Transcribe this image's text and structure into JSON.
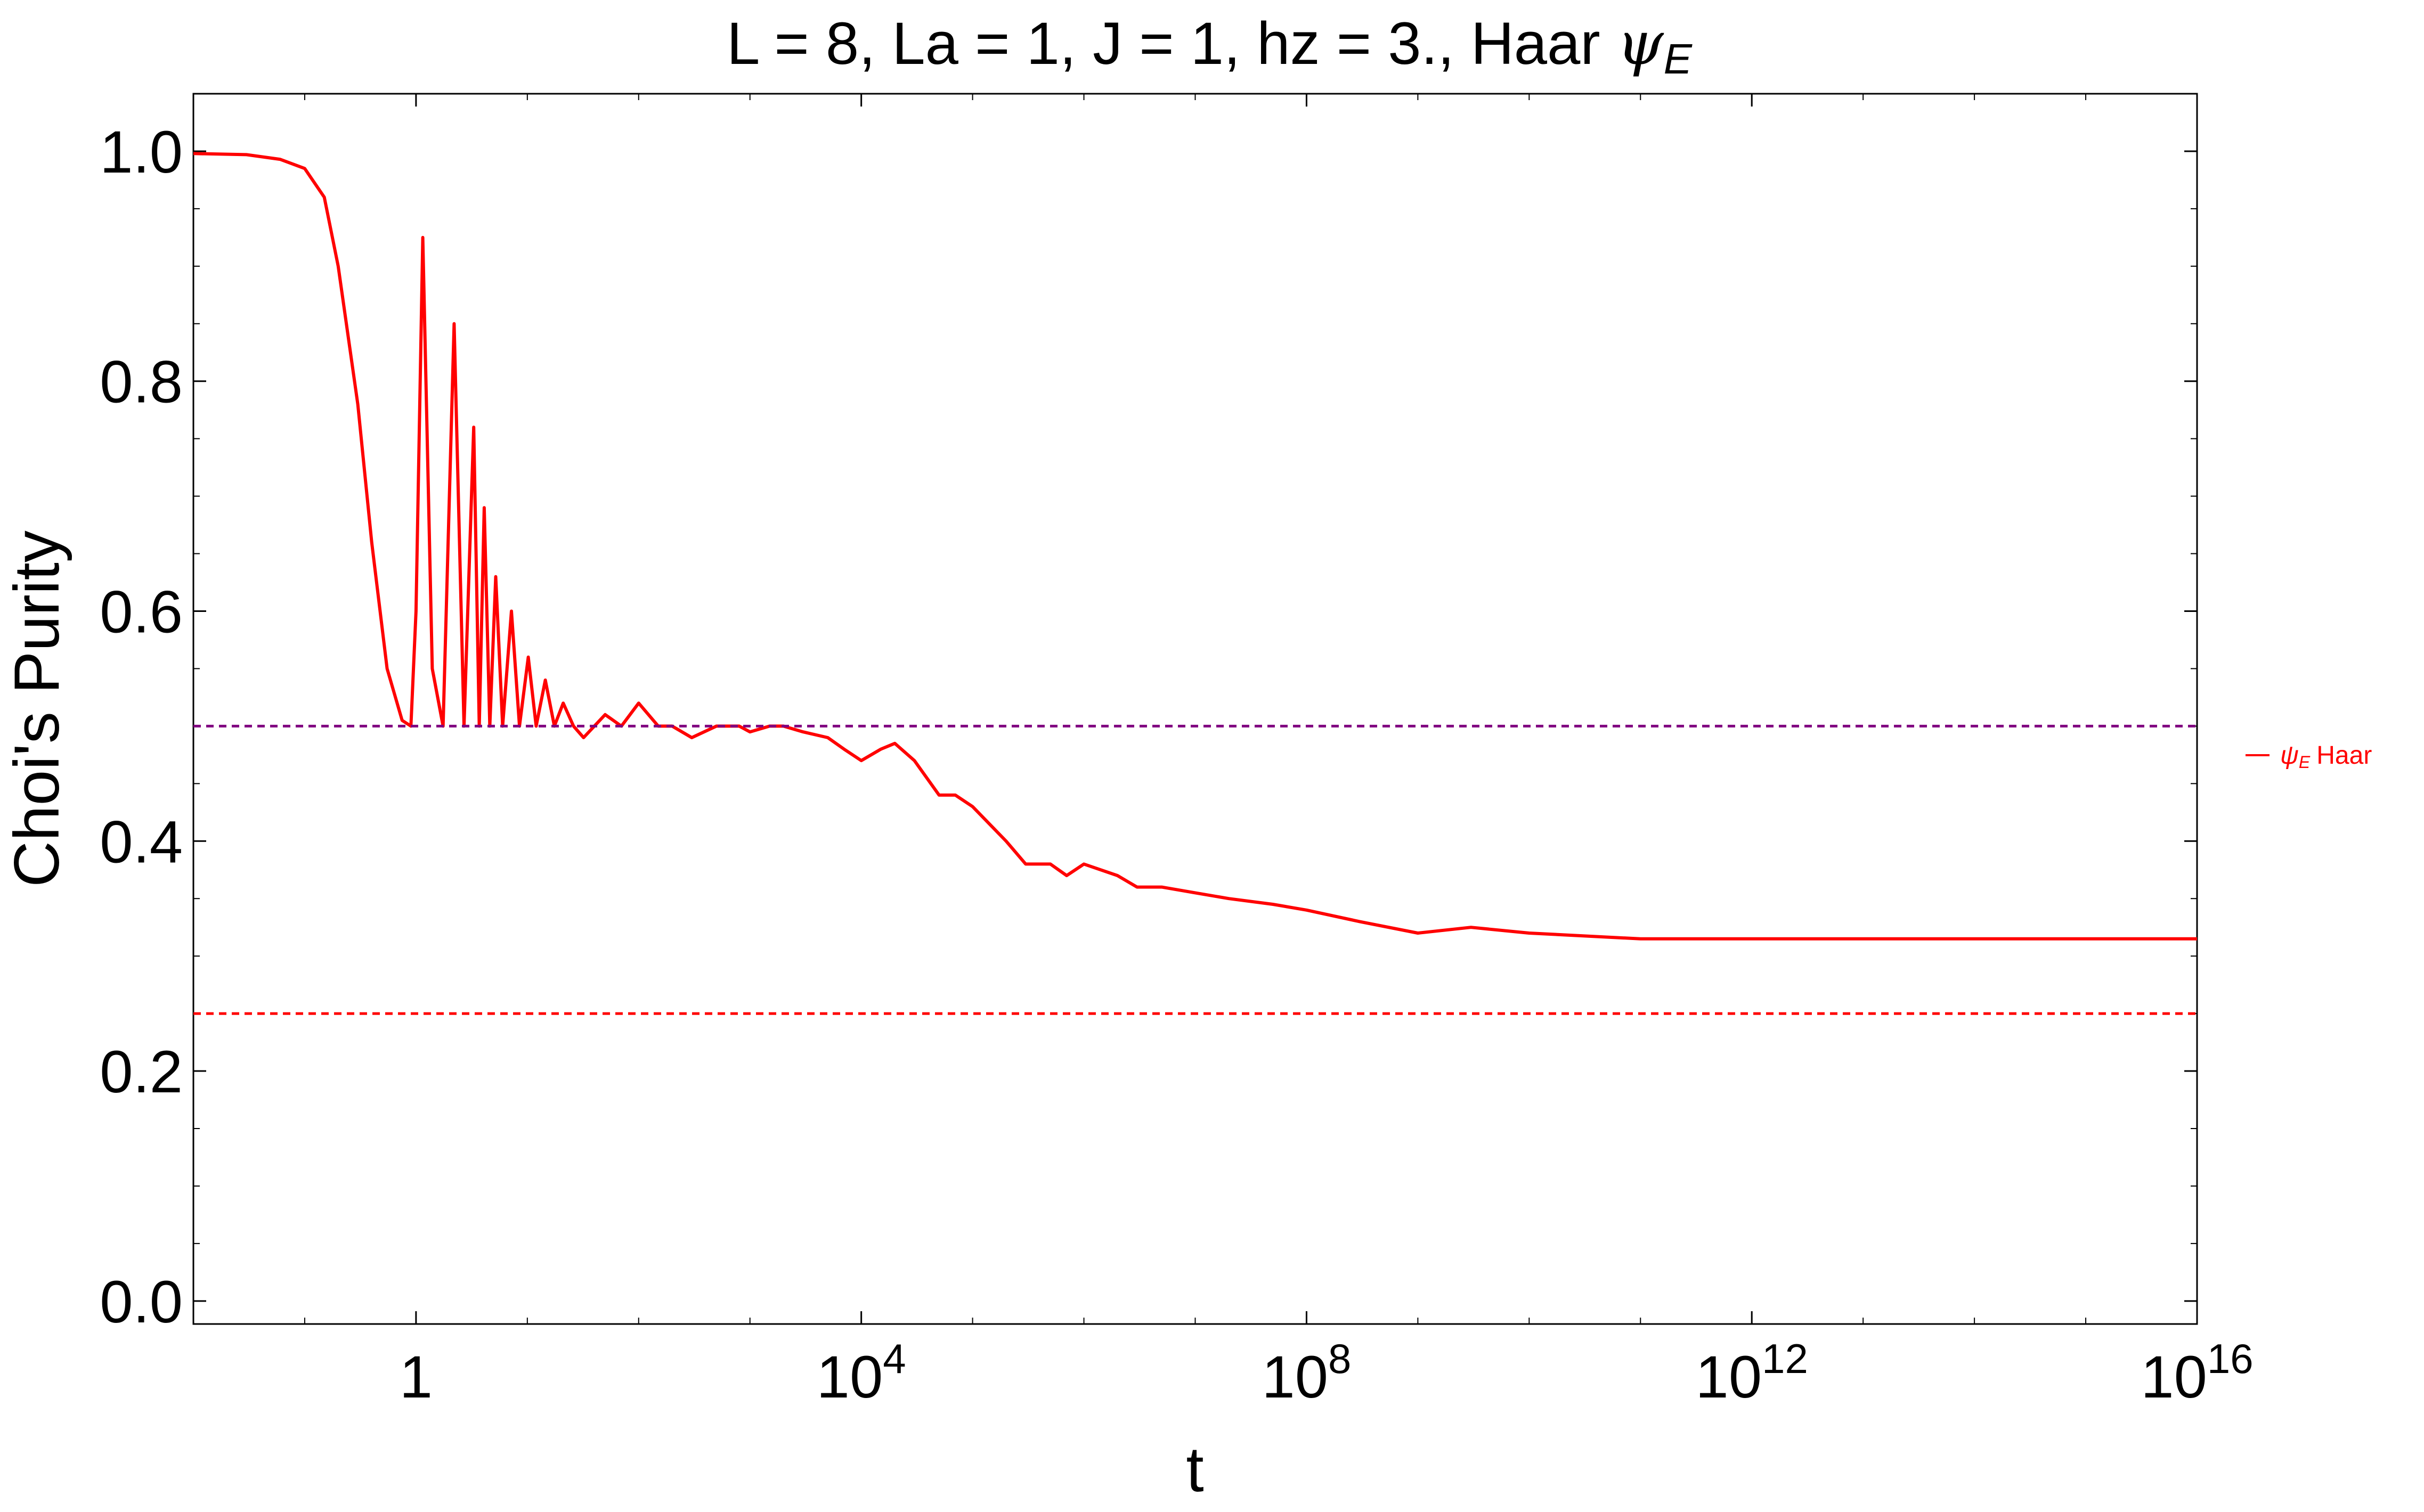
{
  "chart_data": {
    "type": "line",
    "title": {
      "prefix": "L = 8, La = 1, J = 1, hz = 3., Haar ",
      "symbol": "ψ",
      "subscript": "E"
    },
    "xlabel": "t",
    "ylabel": "Choi's Purity",
    "x_scale": "log",
    "xlim": [
      0.01,
      1e+16
    ],
    "ylim": [
      -0.02,
      1.05
    ],
    "x_ticks": [
      {
        "value": 1,
        "base": "1",
        "exp": ""
      },
      {
        "value": 10000,
        "base": "10",
        "exp": "4"
      },
      {
        "value": 100000000,
        "base": "10",
        "exp": "8"
      },
      {
        "value": 1000000000000,
        "base": "10",
        "exp": "12"
      },
      {
        "value": 10000000000000000,
        "base": "10",
        "exp": "16"
      }
    ],
    "y_ticks": [
      {
        "value": 0.0,
        "label": "0.0"
      },
      {
        "value": 0.2,
        "label": "0.2"
      },
      {
        "value": 0.4,
        "label": "0.4"
      },
      {
        "value": 0.6,
        "label": "0.6"
      },
      {
        "value": 0.8,
        "label": "0.8"
      },
      {
        "value": 1.0,
        "label": "1.0"
      }
    ],
    "grid": false,
    "legend_position": "right",
    "series": [
      {
        "name": "Haar",
        "name_symbol": "ψ",
        "name_subscript": "E",
        "color": "#ff0000",
        "style": "solid",
        "x": [
          0.01,
          0.03,
          0.06,
          0.1,
          0.15,
          0.2,
          0.3,
          0.4,
          0.55,
          0.75,
          0.9,
          1.0,
          1.15,
          1.4,
          1.75,
          2.2,
          2.7,
          3.3,
          3.7,
          4.1,
          4.6,
          5.2,
          6.0,
          7.2,
          8.5,
          10.2,
          12.0,
          14.5,
          17.5,
          21,
          26,
          32,
          40,
          50,
          70,
          100,
          150,
          200,
          300,
          500,
          800,
          1000,
          1500,
          2000,
          3000,
          5000,
          7000,
          10000,
          15000,
          20000,
          30000,
          50000,
          70000,
          100000,
          200000,
          300000,
          500000,
          700000,
          1000000,
          2000000,
          3000000,
          5000000,
          10000000,
          20000000,
          50000000,
          100000000,
          300000000,
          1000000000,
          3000000000,
          10000000000,
          100000000000,
          1000000000000,
          10000000000000,
          100000000000000,
          1000000000000000,
          10000000000000000
        ],
        "y": [
          0.998,
          0.997,
          0.993,
          0.985,
          0.96,
          0.9,
          0.78,
          0.66,
          0.55,
          0.505,
          0.5,
          0.6,
          0.925,
          0.55,
          0.5,
          0.85,
          0.5,
          0.76,
          0.5,
          0.69,
          0.5,
          0.63,
          0.5,
          0.6,
          0.5,
          0.56,
          0.5,
          0.54,
          0.5,
          0.52,
          0.5,
          0.49,
          0.5,
          0.51,
          0.5,
          0.52,
          0.5,
          0.5,
          0.49,
          0.5,
          0.5,
          0.495,
          0.5,
          0.5,
          0.495,
          0.49,
          0.48,
          0.47,
          0.48,
          0.485,
          0.47,
          0.44,
          0.44,
          0.43,
          0.4,
          0.38,
          0.38,
          0.37,
          0.38,
          0.37,
          0.36,
          0.36,
          0.355,
          0.35,
          0.345,
          0.34,
          0.33,
          0.32,
          0.325,
          0.32,
          0.315,
          0.315,
          0.315,
          0.315,
          0.315,
          0.315
        ]
      },
      {
        "color": "#800080",
        "style": "dashed",
        "x": [
          0.01,
          10000000000000000
        ],
        "y": [
          0.5,
          0.5
        ]
      },
      {
        "color": "#ff0000",
        "style": "dashed",
        "x": [
          0.01,
          10000000000000000
        ],
        "y": [
          0.25,
          0.25
        ]
      }
    ]
  }
}
